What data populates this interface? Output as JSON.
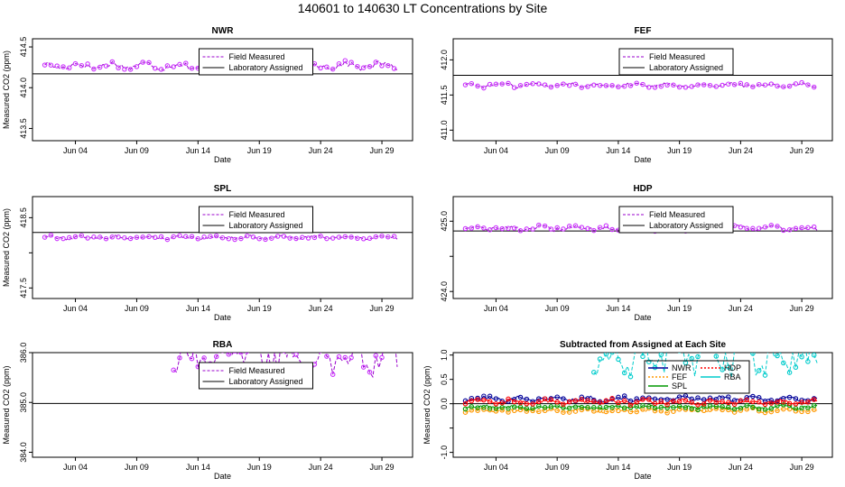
{
  "figure_title": "140601  to  140630 LT Concentrations by Site",
  "colors": {
    "field": "#9900cc",
    "marker": "#cc33ff",
    "assigned": "#000000",
    "NWR": "#000099",
    "FEF": "#ff9900",
    "SPL": "#009900",
    "HDP": "#ff0000",
    "RBA": "#00cccc"
  },
  "chart_data": [
    {
      "id": "NWR",
      "type": "line",
      "title": "NWR",
      "xlabel": "Date",
      "ylabel": "Measured CO2 (ppm)",
      "xticks": [
        "Jun 04",
        "Jun 09",
        "Jun 14",
        "Jun 19",
        "Jun 24",
        "Jun 29"
      ],
      "xtick_days": [
        4,
        9,
        14,
        19,
        24,
        29
      ],
      "xlim": [
        0.5,
        31.5
      ],
      "ylim": [
        413.35,
        414.6
      ],
      "yticks": [
        413.5,
        414.0,
        414.5
      ],
      "ytick_labels": [
        "413.5",
        "414.0",
        "414.5"
      ],
      "assigned": 414.17,
      "base": 414.27,
      "amp": 0.045,
      "legend": [
        "Field Measured",
        "Laboratory Assigned"
      ],
      "legend_pos": "top-center"
    },
    {
      "id": "FEF",
      "type": "line",
      "title": "FEF",
      "xlabel": "Date",
      "ylabel": "",
      "xticks": [
        "Jun 04",
        "Jun 09",
        "Jun 14",
        "Jun 19",
        "Jun 24",
        "Jun 29"
      ],
      "xtick_days": [
        4,
        9,
        14,
        19,
        24,
        29
      ],
      "xlim": [
        0.5,
        31.5
      ],
      "ylim": [
        410.85,
        412.3
      ],
      "yticks": [
        411.0,
        411.5,
        412.0
      ],
      "ytick_labels": [
        "411.0",
        "411.5",
        "412.0"
      ],
      "assigned": 411.78,
      "base": 411.64,
      "amp": 0.03,
      "legend": [
        "Field Measured",
        "Laboratory Assigned"
      ],
      "legend_pos": "top-center"
    },
    {
      "id": "SPL",
      "type": "line",
      "title": "SPL",
      "xlabel": "Date",
      "ylabel": "Measured CO2 (ppm)",
      "xticks": [
        "Jun 04",
        "Jun 09",
        "Jun 14",
        "Jun 19",
        "Jun 24",
        "Jun 29"
      ],
      "xtick_days": [
        4,
        9,
        14,
        19,
        24,
        29
      ],
      "xlim": [
        0.5,
        31.5
      ],
      "ylim": [
        417.35,
        418.8
      ],
      "yticks": [
        417.5,
        418.0,
        418.5
      ],
      "ytick_labels": [
        "417.5",
        "",
        "418.5"
      ],
      "assigned": 418.29,
      "base": 418.22,
      "amp": 0.025,
      "legend": [
        "Field Measured",
        "Laboratory Assigned"
      ],
      "legend_pos": "top-center"
    },
    {
      "id": "HDP",
      "type": "line",
      "title": "HDP",
      "xlabel": "Date",
      "ylabel": "",
      "xticks": [
        "Jun 04",
        "Jun 09",
        "Jun 14",
        "Jun 19",
        "Jun 24",
        "Jun 29"
      ],
      "xtick_days": [
        4,
        9,
        14,
        19,
        24,
        29
      ],
      "xlim": [
        0.5,
        31.5
      ],
      "ylim": [
        423.9,
        425.35
      ],
      "yticks": [
        424.0,
        424.5,
        425.0
      ],
      "ytick_labels": [
        "424.0",
        "",
        "425.0"
      ],
      "assigned": 424.86,
      "base": 424.9,
      "amp": 0.035,
      "legend": [
        "Field Measured",
        "Laboratory Assigned"
      ],
      "legend_pos": "top-center"
    },
    {
      "id": "RBA",
      "type": "line",
      "title": "RBA",
      "xlabel": "Date",
      "ylabel": "Measured CO2 (ppm)",
      "xticks": [
        "Jun 04",
        "Jun 09",
        "Jun 14",
        "Jun 19",
        "Jun 24",
        "Jun 29"
      ],
      "xtick_days": [
        4,
        9,
        14,
        19,
        24,
        29
      ],
      "xlim": [
        0.5,
        31.5
      ],
      "ylim": [
        383.9,
        386.0
      ],
      "yticks": [
        384.0,
        385.0,
        386.0
      ],
      "ytick_labels": [
        "384.0",
        "385.0",
        "386.0"
      ],
      "assigned": 384.98,
      "base": 385.95,
      "amp": 0.35,
      "start_day": 12,
      "legend": [
        "Field Measured",
        "Laboratory Assigned"
      ],
      "legend_pos": "top-center"
    },
    {
      "id": "SUB",
      "type": "scatter",
      "title": "Subtracted from Assigned at Each Site",
      "xlabel": "Date",
      "ylabel": "Measured CO2 (ppm)",
      "xticks": [
        "Jun 04",
        "Jun 09",
        "Jun 14",
        "Jun 19",
        "Jun 24",
        "Jun 29"
      ],
      "xtick_days": [
        4,
        9,
        14,
        19,
        24,
        29
      ],
      "xlim": [
        0.5,
        31.5
      ],
      "ylim": [
        -1.1,
        1.05
      ],
      "yticks": [
        -1.0,
        -0.5,
        0.0,
        0.5,
        1.0
      ],
      "ytick_labels": [
        "-1.0",
        "",
        "0.0",
        "0.5",
        "1.0"
      ],
      "assigned": 0.0,
      "series": [
        {
          "name": "NWR",
          "offset": 0.1,
          "amp": 0.05
        },
        {
          "name": "FEF",
          "offset": -0.14,
          "amp": 0.04
        },
        {
          "name": "SPL",
          "offset": -0.07,
          "amp": 0.04
        },
        {
          "name": "HDP",
          "offset": 0.04,
          "amp": 0.05
        },
        {
          "name": "RBA",
          "offset": 0.97,
          "amp": 0.35,
          "start_day": 12
        }
      ],
      "legend": [
        "NWR",
        "FEF",
        "SPL",
        "HDP",
        "RBA"
      ],
      "legend_pos": "top-center"
    }
  ]
}
